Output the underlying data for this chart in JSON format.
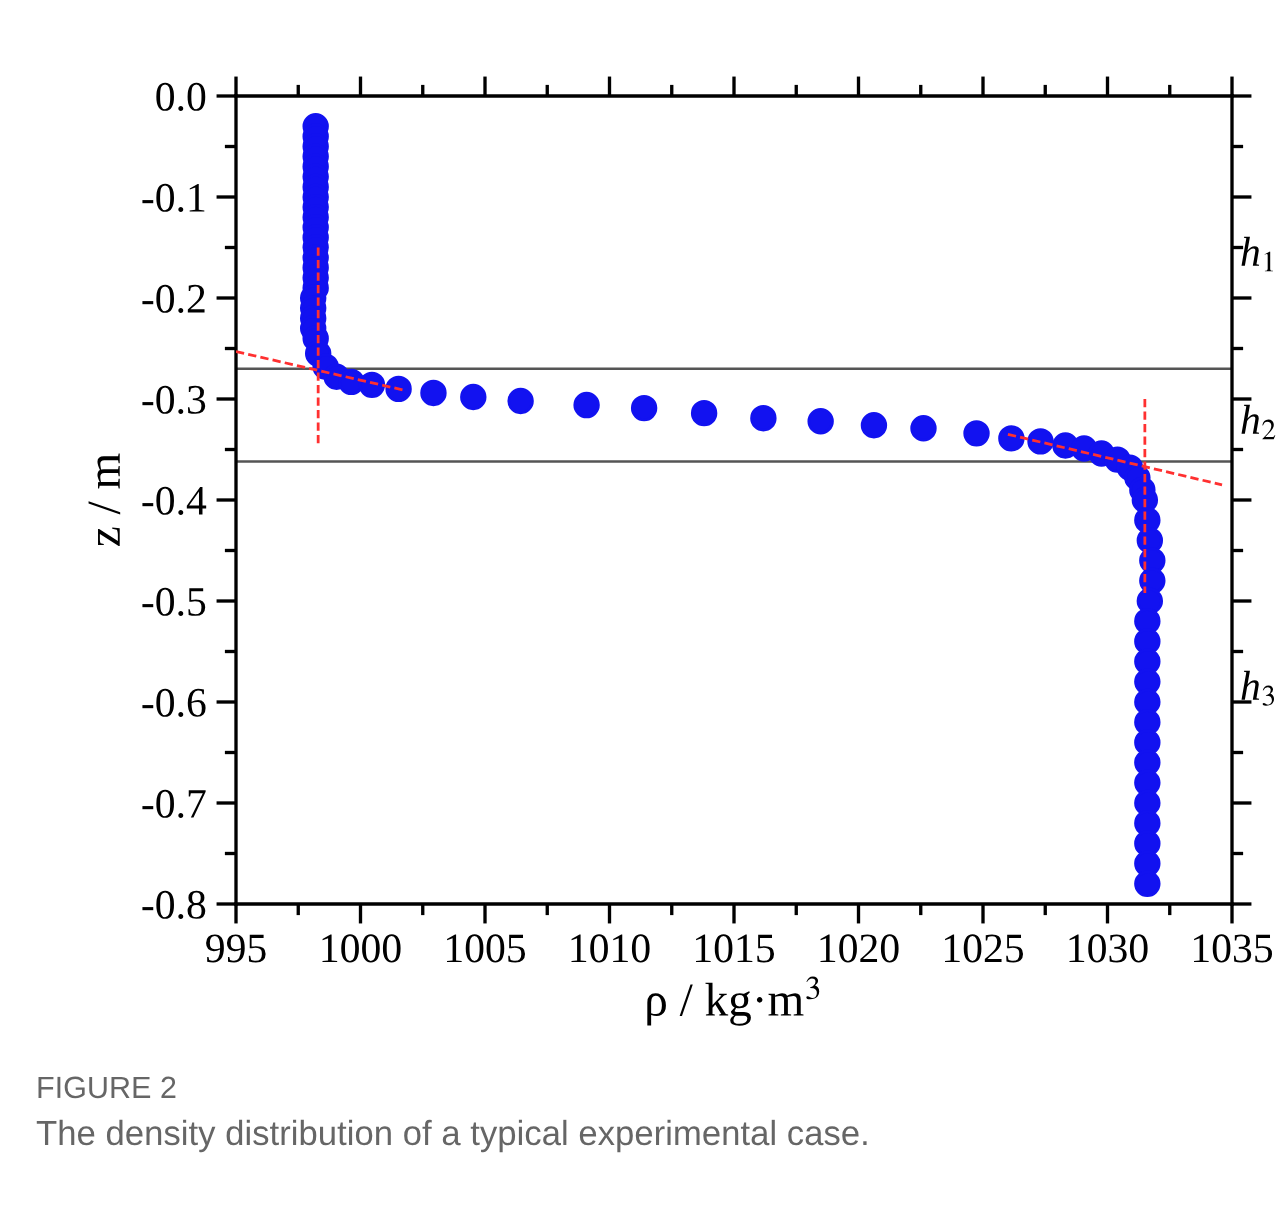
{
  "chart_data": {
    "type": "scatter",
    "xlabel": "ρ / kg·m$^{3}$",
    "ylabel": "z / m",
    "xlim": [
      995,
      1035
    ],
    "xticks": [
      995,
      1000,
      1005,
      1010,
      1015,
      1020,
      1025,
      1030,
      1035
    ],
    "ylim": [
      -0.8,
      0.0
    ],
    "yticks": [
      {
        "value": -0.8,
        "label": "-0.8"
      },
      {
        "value": -0.7,
        "label": "-0.7"
      },
      {
        "value": -0.6,
        "label": "-0.6"
      },
      {
        "value": -0.5,
        "label": "-0.5"
      },
      {
        "value": -0.4,
        "label": "-0.4"
      },
      {
        "value": -0.3,
        "label": "-0.3"
      },
      {
        "value": -0.2,
        "label": "-0.2"
      },
      {
        "value": -0.1,
        "label": "-0.1"
      },
      {
        "value": 0.0,
        "label": "0.0"
      }
    ],
    "grid": false,
    "legend": false,
    "series": [
      {
        "marker": "circle",
        "color": "#1212f0",
        "x": [
          998.2,
          998.2,
          998.2,
          998.2,
          998.2,
          998.2,
          998.2,
          998.2,
          998.2,
          998.2,
          998.2,
          998.2,
          998.2,
          998.2,
          998.2,
          998.2,
          998.2,
          998.1,
          998.1,
          998.1,
          998.1,
          998.2,
          998.3,
          998.6,
          999.04,
          999.63,
          1000.46,
          1001.53,
          1002.93,
          1004.53,
          1006.43,
          1009.08,
          1011.39,
          1013.8,
          1016.18,
          1018.48,
          1020.62,
          1022.61,
          1024.74,
          1026.14,
          1027.31,
          1028.31,
          1029.06,
          1029.76,
          1030.4,
          1030.9,
          1031.2,
          1031.4,
          1031.5,
          1031.6,
          1031.7,
          1031.8,
          1031.8,
          1031.7,
          1031.6,
          1031.6,
          1031.6,
          1031.6,
          1031.6,
          1031.6,
          1031.6,
          1031.6,
          1031.6,
          1031.6,
          1031.6,
          1031.6,
          1031.6,
          1031.6
        ],
        "values": [
          -0.03,
          -0.04,
          -0.05,
          -0.06,
          -0.07,
          -0.08,
          -0.09,
          -0.1,
          -0.11,
          -0.12,
          -0.13,
          -0.14,
          -0.15,
          -0.16,
          -0.17,
          -0.18,
          -0.19,
          -0.2,
          -0.21,
          -0.22,
          -0.23,
          -0.24,
          -0.255,
          -0.268,
          -0.278,
          -0.283,
          -0.286,
          -0.29,
          -0.294,
          -0.298,
          -0.302,
          -0.306,
          -0.309,
          -0.314,
          -0.319,
          -0.322,
          -0.326,
          -0.329,
          -0.334,
          -0.339,
          -0.342,
          -0.346,
          -0.349,
          -0.354,
          -0.36,
          -0.368,
          -0.378,
          -0.39,
          -0.4,
          -0.42,
          -0.44,
          -0.46,
          -0.48,
          -0.5,
          -0.52,
          -0.54,
          -0.56,
          -0.58,
          -0.6,
          -0.62,
          -0.64,
          -0.66,
          -0.68,
          -0.7,
          -0.72,
          -0.74,
          -0.76,
          -0.78
        ]
      },
      {
        "type": "line",
        "line_style": "dashed",
        "color": "#ff3030",
        "x": [
          995,
          1001.7
        ],
        "values": [
          -0.253,
          -0.291
        ]
      },
      {
        "type": "line",
        "line_style": "dashed",
        "color": "#ff3030",
        "x": [
          998.3,
          998.3
        ],
        "values": [
          -0.15,
          -0.344
        ]
      },
      {
        "type": "line",
        "line_style": "dashed",
        "color": "#ff3030",
        "x": [
          1026.0,
          1034.6
        ],
        "values": [
          -0.335,
          -0.385
        ]
      },
      {
        "type": "line",
        "line_style": "dashed",
        "color": "#ff3030",
        "x": [
          1031.5,
          1031.5
        ],
        "values": [
          -0.3,
          -0.492
        ]
      }
    ],
    "ref_lines": [
      {
        "axis": "y",
        "value": -0.27,
        "color": "#555555"
      },
      {
        "axis": "y",
        "value": -0.362,
        "color": "#555555"
      }
    ],
    "annotations": [
      "h$_{1}$",
      "h$_{2}$",
      "h$_{3}$",
      "FIGURE 2",
      "The density distribution of a typical experimental case."
    ]
  }
}
